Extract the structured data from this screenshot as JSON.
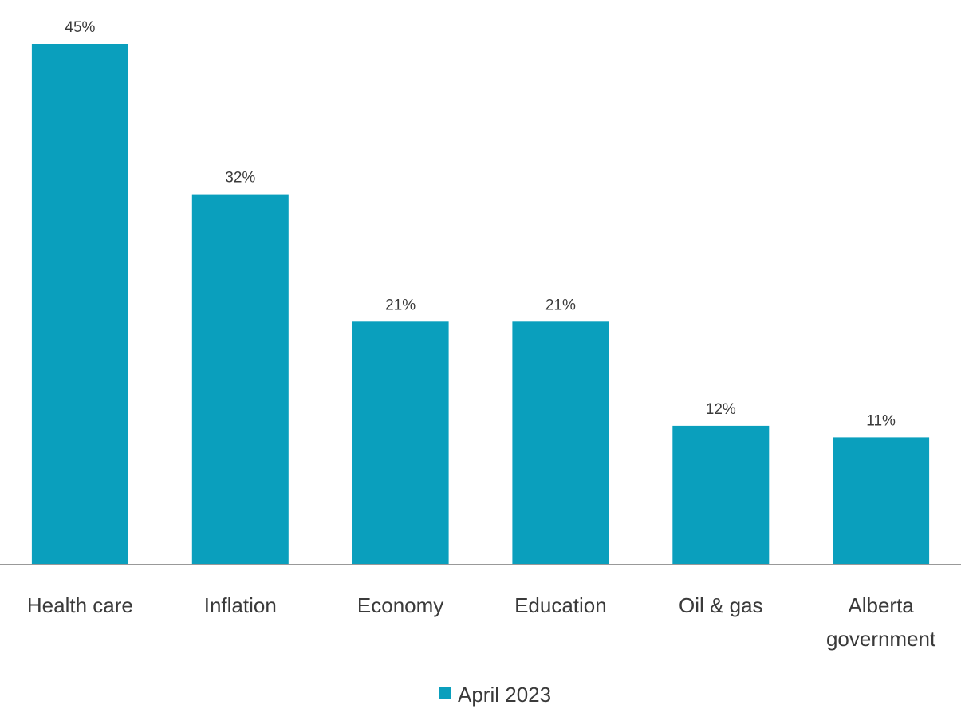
{
  "chart_data": {
    "type": "bar",
    "categories": [
      "Health care",
      "Inflation",
      "Economy",
      "Education",
      "Oil & gas",
      "Alberta government"
    ],
    "series": [
      {
        "name": "April 2023",
        "values": [
          45,
          32,
          21,
          21,
          12,
          11
        ],
        "color": "#0a9fbd"
      }
    ],
    "data_labels": [
      "45%",
      "32%",
      "21%",
      "21%",
      "12%",
      "11%"
    ],
    "ylim": [
      0,
      45
    ],
    "grid": false,
    "legend_position": "bottom-center",
    "axis_color": "#999999"
  }
}
